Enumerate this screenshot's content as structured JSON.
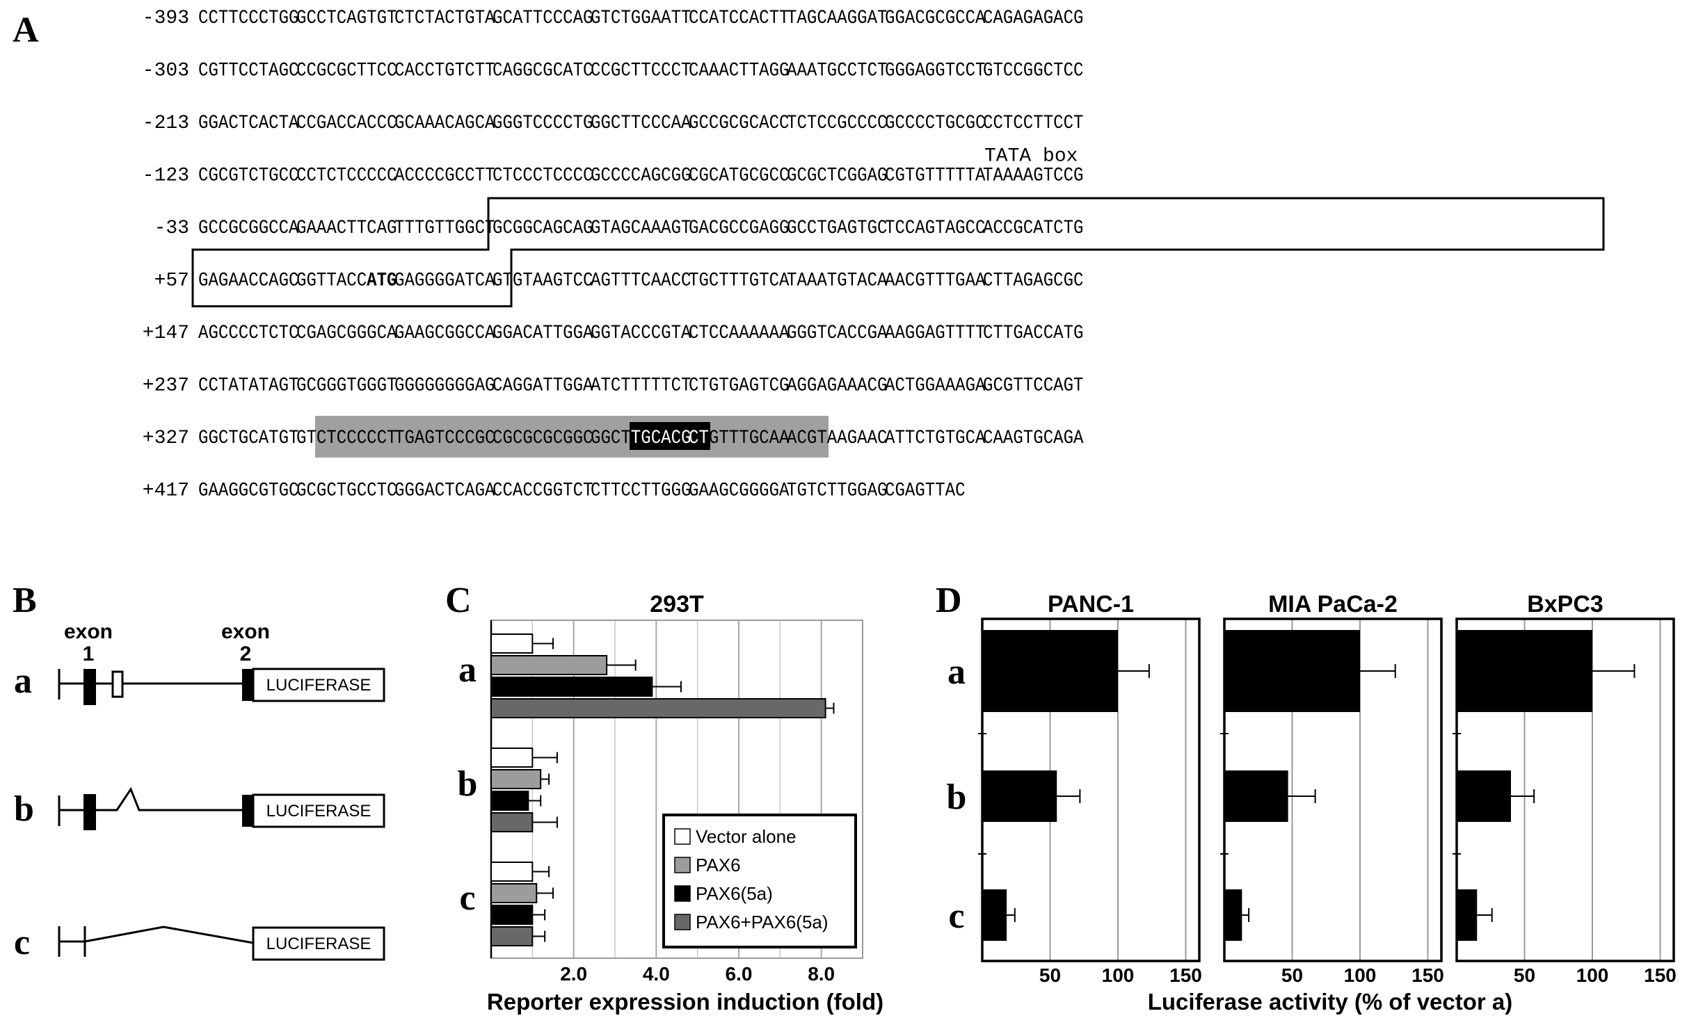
{
  "panel_a": {
    "label": "A",
    "rows": [
      {
        "pos": "-393",
        "groups": [
          "CCTTCCCTGG",
          "GCCTCAGTGT",
          "CTCTACTGTA",
          "GCATTCCCAG",
          "GTCTGGAATT",
          "CCATCCACTT",
          "TAGCAAGGAT",
          "GGACGCGCCA",
          "CAGAGAGACG"
        ]
      },
      {
        "pos": "-303",
        "groups": [
          "CGTTCCTAGC",
          "CCGCGCTTCC",
          "CACCTGTCTT",
          "CAGGCGCATC",
          "CCGCTTCCCT",
          "CAAACTTAGG",
          "AAATGCCTCT",
          "GGGAGGTCCT",
          "GTCCGGCTCC"
        ]
      },
      {
        "pos": "-213",
        "groups": [
          "GGACTCACTA",
          "CCGACCACCC",
          "GCAAACAGCA",
          "GGGTCCCCTG",
          "GGCTTCCCAA",
          "GCCGCGCACC",
          "TCTCCGCCCC",
          "GCCCCTGCGC",
          "CCTCCTTCCT"
        ]
      },
      {
        "pos": "-123",
        "groups": [
          "CGCGTCTGCC",
          "CCTCTCCCCC",
          "ACCCCGCCTT",
          "CTCCCTCCCC",
          "GCCCCAGCGG",
          "CGCATGCGCC",
          "GCGCTCGGAG",
          "CGTGTTTTTA",
          "TAAAAGTCCG"
        ]
      },
      {
        "pos": "-33",
        "groups": [
          "GCCGCGGCCA",
          "GAAACTTCAG",
          "TTTGTTGGCT",
          "GCGGCAGCAG",
          "GTAGCAAAGT",
          "GACGCCGAGG",
          "GCCTGAGTGC",
          "TCCAGTAGCC",
          "ACCGCATCTG"
        ]
      },
      {
        "pos": "+57",
        "groups": [
          "GAGAACCAGC",
          "GGTTACCATG",
          "GAGGGGATCA",
          "GTGTAAGTCC",
          "AGTTTCAACC",
          "TGCTTTGTCA",
          "TAAATGTACA",
          "AACGTTTGAA",
          "CTTAGAGCGC"
        ]
      },
      {
        "pos": "+147",
        "groups": [
          "AGCCCCTCTC",
          "CGAGCGGGCA",
          "GAAGCGGCCA",
          "GGACATTGGA",
          "GGTACCCGTA",
          "CTCCAAAAAA",
          "GGGTCACCGA",
          "AAGGAGTTTT",
          "CTTGACCATG"
        ]
      },
      {
        "pos": "+237",
        "groups": [
          "CCTATATAGT",
          "GCGGGTGGGT",
          "GGGGGGGGAG",
          "CAGGATTGGA",
          "ATCTTTTTCT",
          "CTGTGAGTCG",
          "AGGAGAAACG",
          "ACTGGAAAGA",
          "GCGTTCCAGT"
        ]
      },
      {
        "pos": "+327",
        "groups": [
          "GGCTGCATGT",
          "GTCTCCCCCT",
          "TGAGTCCCGC",
          "CGCGCGCGGC",
          "GGCTTGCACG",
          "CTGTTTGCAA",
          "ACGTAAGAAC",
          "ATTCTGTGCA",
          "CAAGTGCAGA"
        ]
      },
      {
        "pos": "+417",
        "groups": [
          "GAAGGCGTGC",
          "GCGCTGCCTC",
          "GGGACTCAGA",
          "CCACCGGTCT",
          "CTTCCTTGGG",
          "GAAGCGGGGA",
          "TGTCTTGGAG",
          "CGAGTTAC"
        ]
      }
    ],
    "tata_label": "TATA box",
    "tata_row": 3,
    "tata_group": 8,
    "tata_char_start": 0,
    "tata_char_len": 4,
    "start_codon": "ATG",
    "start_codon_row": 5,
    "start_codon_group": 1,
    "start_codon_char": 7,
    "exon_box": {
      "start_row": 4,
      "start_group": 3,
      "start_char": 0,
      "end_row": 5,
      "end_group": 3,
      "end_char": 2
    },
    "gray_region": {
      "row": 8,
      "start_group": 1,
      "start_char": 2,
      "end_group": 6,
      "end_char": 4,
      "color": "#a0a0a0"
    },
    "black_region": {
      "row": 8,
      "start_group": 4,
      "start_char": 4,
      "end_group": 5,
      "end_char": 2,
      "color": "#000000"
    }
  },
  "panel_b": {
    "label": "B",
    "exon1_label": [
      "exon",
      "1"
    ],
    "exon2_label": [
      "exon",
      "2"
    ],
    "constructs": [
      {
        "label": "a",
        "luciferase": "LUCIFERASE",
        "variant": "full"
      },
      {
        "label": "b",
        "luciferase": "LUCIFERASE",
        "variant": "spliced"
      },
      {
        "label": "c",
        "luciferase": "LUCIFERASE",
        "variant": "deleted"
      }
    ]
  },
  "chart_data": [
    {
      "panel": "C",
      "type": "bar",
      "orientation": "horizontal",
      "title": "293T",
      "xlabel": "Reporter expression induction (fold)",
      "xlim": [
        0,
        9
      ],
      "xticks": [
        2.0,
        4.0,
        6.0,
        8.0
      ],
      "xtick_labels": [
        "2.0",
        "4.0",
        "6.0",
        "8.0"
      ],
      "grid": true,
      "legend_position": "bottom-right",
      "categories": [
        "a",
        "b",
        "c"
      ],
      "series": [
        {
          "name": "Vector alone",
          "color": "#ffffff",
          "values": [
            1.0,
            1.0,
            1.0
          ],
          "errors": [
            0.5,
            0.6,
            0.4
          ]
        },
        {
          "name": "PAX6",
          "color": "#9c9c9c",
          "values": [
            2.8,
            1.2,
            1.1
          ],
          "errors": [
            0.7,
            0.2,
            0.4
          ]
        },
        {
          "name": "PAX6(5a)",
          "color": "#000000",
          "values": [
            3.9,
            0.9,
            1.0
          ],
          "errors": [
            0.7,
            0.3,
            0.3
          ]
        },
        {
          "name": "PAX6+PAX6(5a)",
          "color": "#686868",
          "values": [
            8.1,
            1.0,
            1.0
          ],
          "errors": [
            0.2,
            0.6,
            0.3
          ]
        }
      ]
    },
    {
      "panel": "D",
      "type": "bar",
      "orientation": "horizontal",
      "xlabel": "Luciferase activity (% of vector a)",
      "xlim": [
        0,
        160
      ],
      "xticks": [
        50,
        100,
        150
      ],
      "xtick_labels": [
        "50",
        "100",
        "150"
      ],
      "grid": true,
      "categories": [
        "a",
        "b",
        "c"
      ],
      "subplots": [
        {
          "title": "PANC-1",
          "values": [
            100,
            55,
            18
          ],
          "errors": [
            23,
            17,
            6
          ]
        },
        {
          "title": "MIA PaCa-2",
          "values": [
            100,
            47,
            13
          ],
          "errors": [
            26,
            20,
            5
          ]
        },
        {
          "title": "BxPC3",
          "values": [
            100,
            40,
            15
          ],
          "errors": [
            31,
            17,
            11
          ]
        }
      ]
    }
  ]
}
